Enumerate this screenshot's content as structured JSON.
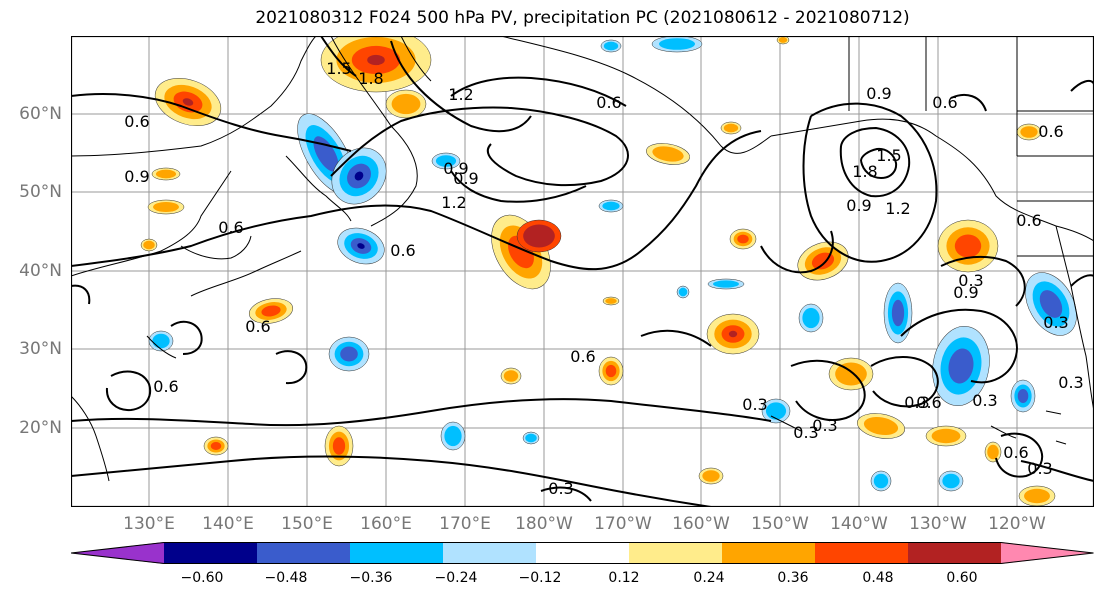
{
  "title": "2021080312 F024 500 hPa PV, precipitation PC (2021080612 - 2021080712)",
  "map": {
    "lat_labels": [
      "60°N",
      "50°N",
      "40°N",
      "30°N",
      "20°N"
    ],
    "lon_labels": [
      "130°E",
      "140°E",
      "150°E",
      "160°E",
      "170°E",
      "180°W",
      "170°W",
      "160°W",
      "150°W",
      "140°W",
      "130°W",
      "120°W"
    ],
    "grid": true,
    "land_outline_color": "#000000",
    "contour_color": "#000000",
    "contour_labels": [
      "0.6",
      "1.8",
      "1.2",
      "1.5",
      "0.6",
      "0.9",
      "0.9",
      "1.2",
      "0.6",
      "0.6",
      "0.6",
      "0.6",
      "0.3",
      "0.3",
      "0.3",
      "0.3",
      "0.3",
      "0.6",
      "0.3",
      "0.6",
      "0.9",
      "1.2",
      "1.8",
      "1.5",
      "0.6",
      "0.9",
      "0.6",
      "0.3",
      "0.9",
      "0.6",
      "0.3",
      "0.3",
      "0.3",
      "0.6",
      "0.9"
    ]
  },
  "colorbar": {
    "colors": [
      "#9932cc",
      "#00008b",
      "#3a5ccc",
      "#00bfff",
      "#b0e2ff",
      "#ffffff",
      "#ffec8b",
      "#ffa500",
      "#ff4500",
      "#b22222",
      "#ff88b0"
    ],
    "tick_labels": [
      "−0.60",
      "−0.48",
      "−0.36",
      "−0.24",
      "−0.12",
      "0.12",
      "0.24",
      "0.36",
      "0.48",
      "0.60"
    ]
  }
}
